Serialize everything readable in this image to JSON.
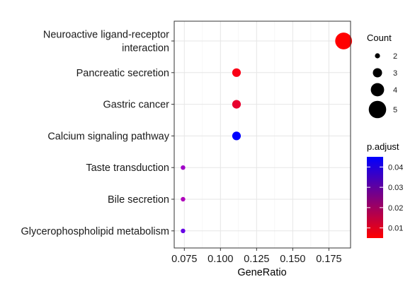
{
  "chart_data": {
    "type": "scatter",
    "xlabel": "GeneRatio",
    "xlim": [
      0.068,
      0.19
    ],
    "x_ticks": [
      "0.075",
      "0.100",
      "0.125",
      "0.150",
      "0.175"
    ],
    "x_tick_values": [
      0.075,
      0.1,
      0.125,
      0.15,
      0.175
    ],
    "grid": true,
    "legend_position": "right",
    "points": [
      {
        "term_lines": [
          "Neuroactive ligand-receptor",
          "interaction"
        ],
        "gene_ratio": 0.1852,
        "count": 5,
        "p_adjust": 0.004,
        "color": "#FF0000"
      },
      {
        "term_lines": [
          "Pancreatic secretion"
        ],
        "gene_ratio": 0.1111,
        "count": 3,
        "p_adjust": 0.006,
        "color": "#FA0016"
      },
      {
        "term_lines": [
          "Gastric cancer"
        ],
        "gene_ratio": 0.1111,
        "count": 3,
        "p_adjust": 0.012,
        "color": "#E8002E"
      },
      {
        "term_lines": [
          "Calcium signaling pathway"
        ],
        "gene_ratio": 0.1111,
        "count": 3,
        "p_adjust": 0.045,
        "color": "#0000FF"
      },
      {
        "term_lines": [
          "Taste transduction"
        ],
        "gene_ratio": 0.0741,
        "count": 2,
        "p_adjust": 0.028,
        "color": "#A000C8"
      },
      {
        "term_lines": [
          "Bile secretion"
        ],
        "gene_ratio": 0.0741,
        "count": 2,
        "p_adjust": 0.026,
        "color": "#B000BC"
      },
      {
        "term_lines": [
          "Glycerophospholipid metabolism"
        ],
        "gene_ratio": 0.0741,
        "count": 2,
        "p_adjust": 0.038,
        "color": "#6600E6"
      }
    ],
    "size_legend": {
      "title": "Count",
      "entries": [
        {
          "label": "2",
          "value": 2
        },
        {
          "label": "3",
          "value": 3
        },
        {
          "label": "4",
          "value": 4
        },
        {
          "label": "5",
          "value": 5
        }
      ]
    },
    "color_legend": {
      "title": "p.adjust",
      "range": [
        0.005,
        0.045
      ],
      "low_color": "#FF0000",
      "high_color": "#0000FF",
      "ticks": [
        {
          "label": "0.04",
          "value": 0.04
        },
        {
          "label": "0.03",
          "value": 0.03
        },
        {
          "label": "0.02",
          "value": 0.02
        },
        {
          "label": "0.01",
          "value": 0.01
        }
      ]
    }
  }
}
